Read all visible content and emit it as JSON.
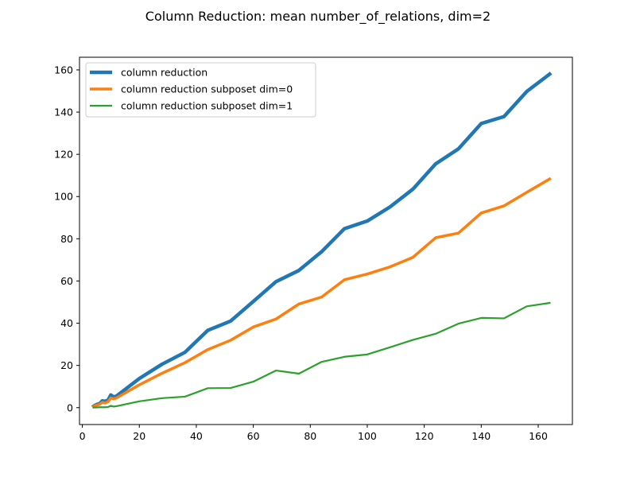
{
  "chart_data": {
    "type": "line",
    "title": "Column Reduction: mean number_of_relations, dim=2",
    "xlabel": "",
    "ylabel": "",
    "xlim": [
      -1,
      172
    ],
    "ylim": [
      -8,
      166
    ],
    "xticks": [
      0,
      20,
      40,
      60,
      80,
      100,
      120,
      140,
      160
    ],
    "yticks": [
      0,
      20,
      40,
      60,
      80,
      100,
      120,
      140,
      160
    ],
    "grid": false,
    "legend_position": "upper-left",
    "series": [
      {
        "name": "column reduction",
        "color": "#1f77b4",
        "line_width": 4.5,
        "x": [
          4,
          5,
          6,
          7,
          8,
          9,
          10,
          11,
          12,
          20,
          28,
          36,
          44,
          52,
          60,
          68,
          76,
          84,
          92,
          100,
          108,
          116,
          124,
          132,
          140,
          148,
          156,
          164
        ],
        "y": [
          0.7,
          1.5,
          1.8,
          3.2,
          3.0,
          3.5,
          6.0,
          5.0,
          5.5,
          13.8,
          20.6,
          26.2,
          36.6,
          41.0,
          50.3,
          59.7,
          65.0,
          73.9,
          84.8,
          88.4,
          95.1,
          103.5,
          115.5,
          122.6,
          134.6,
          137.9,
          149.8,
          158.0
        ]
      },
      {
        "name": "column reduction subposet dim=0",
        "color": "#ff7f0e",
        "line_width": 3.5,
        "x": [
          4,
          5,
          6,
          7,
          8,
          9,
          10,
          11,
          12,
          20,
          28,
          36,
          44,
          52,
          60,
          68,
          76,
          84,
          92,
          100,
          108,
          116,
          124,
          132,
          140,
          148,
          156,
          164
        ],
        "y": [
          0.5,
          1.2,
          1.5,
          2.5,
          2.2,
          2.8,
          4.6,
          4.2,
          4.6,
          10.8,
          16.3,
          21.3,
          27.5,
          31.9,
          38.2,
          42.0,
          49.1,
          52.4,
          60.6,
          63.3,
          66.7,
          71.2,
          80.5,
          82.7,
          92.2,
          95.6,
          102.0,
          108.3
        ]
      },
      {
        "name": "column reduction subposet dim=1",
        "color": "#2ca02c",
        "line_width": 2.2,
        "x": [
          4,
          5,
          6,
          7,
          8,
          9,
          10,
          11,
          12,
          20,
          28,
          36,
          44,
          52,
          60,
          68,
          76,
          84,
          92,
          100,
          108,
          116,
          124,
          132,
          140,
          148,
          156,
          164
        ],
        "y": [
          0.1,
          0.1,
          0.2,
          0.2,
          0.2,
          0.3,
          0.9,
          0.5,
          0.7,
          3.0,
          4.5,
          5.2,
          9.2,
          9.3,
          12.3,
          17.6,
          16.1,
          21.7,
          24.1,
          25.2,
          28.6,
          32.1,
          35.0,
          39.8,
          42.5,
          42.3,
          48.0,
          49.6
        ]
      }
    ]
  }
}
